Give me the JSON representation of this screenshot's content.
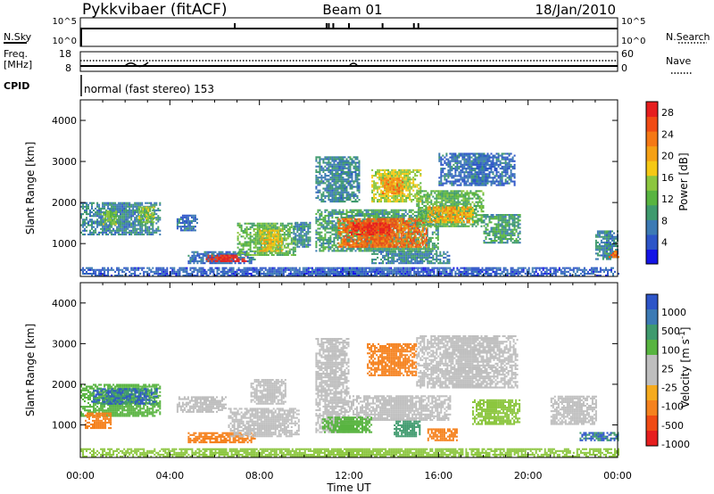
{
  "header": {
    "station": "Pykkvibaer (fitACF)",
    "beam": "Beam 01",
    "date": "18/Jan/2010"
  },
  "top_panels": {
    "nsky_label": "N.Sky",
    "nsky_ticks": [
      "10^5",
      "10^0"
    ],
    "nsearch_label": "N.Search",
    "nsearch_ticks": [
      "10^5",
      "10^0"
    ],
    "freq_label_1": "Freq.",
    "freq_label_2": "[MHz]",
    "freq_ticks": [
      "18",
      "8"
    ],
    "nave_label": "Nave",
    "nave_ticks": [
      "60",
      "0"
    ],
    "cpid_label": "CPID",
    "cpid_value": "normal (fast stereo) 153"
  },
  "colors": {
    "power_scale": [
      "#1414e6",
      "#2d55c8",
      "#3c7ab4",
      "#3f9a6e",
      "#58b440",
      "#8cc63f",
      "#f5c814",
      "#f5a014",
      "#f57814",
      "#f04b14",
      "#e61e1e"
    ],
    "velocity_scale": [
      "#e61e1e",
      "#f04b14",
      "#f5821e",
      "#f5aa1e",
      "#bebebe",
      "#bebebe",
      "#58b440",
      "#3f9a6e",
      "#3c7ab4",
      "#2d55c8"
    ]
  },
  "chart_data": [
    {
      "type": "heatmap",
      "name": "power",
      "xlabel": "",
      "ylabel": "Slant Range [km]",
      "x_unit": "hours UT",
      "xlim": [
        0,
        24
      ],
      "ylim": [
        200,
        4500
      ],
      "x_ticks": [
        "00:00",
        "04:00",
        "08:00",
        "12:00",
        "16:00",
        "20:00",
        "00:00"
      ],
      "y_ticks": [
        "1000",
        "2000",
        "3000",
        "4000"
      ],
      "colorbar_label": "Power [dB]",
      "colorbar_ticks": [
        "4",
        "8",
        "12",
        "16",
        "20",
        "24",
        "28"
      ],
      "clim": [
        0,
        30
      ],
      "regions": [
        {
          "t0": 0.0,
          "t1": 3.6,
          "r0": 1200,
          "r1": 2000,
          "value": 8
        },
        {
          "t0": 1.0,
          "t1": 1.6,
          "r0": 1450,
          "r1": 1800,
          "value": 14
        },
        {
          "t0": 2.6,
          "t1": 3.3,
          "r0": 1500,
          "r1": 1900,
          "value": 14
        },
        {
          "t0": 4.3,
          "t1": 5.2,
          "r0": 1300,
          "r1": 1700,
          "value": 6
        },
        {
          "t0": 4.8,
          "t1": 7.8,
          "r0": 500,
          "r1": 800,
          "value": 6
        },
        {
          "t0": 5.6,
          "t1": 7.4,
          "r0": 550,
          "r1": 720,
          "value": 28
        },
        {
          "t0": 7.0,
          "t1": 9.6,
          "r0": 700,
          "r1": 1500,
          "value": 12
        },
        {
          "t0": 8.0,
          "t1": 9.0,
          "r0": 800,
          "r1": 1300,
          "value": 18
        },
        {
          "t0": 9.5,
          "t1": 10.3,
          "r0": 900,
          "r1": 1500,
          "value": 8
        },
        {
          "t0": 10.5,
          "t1": 16.0,
          "r0": 800,
          "r1": 1800,
          "value": 10
        },
        {
          "t0": 11.5,
          "t1": 15.5,
          "r0": 900,
          "r1": 1600,
          "value": 24
        },
        {
          "t0": 12.0,
          "t1": 13.8,
          "r0": 1200,
          "r1": 1500,
          "value": 28
        },
        {
          "t0": 13.0,
          "t1": 15.2,
          "r0": 2000,
          "r1": 2800,
          "value": 16
        },
        {
          "t0": 13.4,
          "t1": 14.4,
          "r0": 2200,
          "r1": 2600,
          "value": 22
        },
        {
          "t0": 10.5,
          "t1": 12.5,
          "r0": 2000,
          "r1": 3100,
          "value": 8
        },
        {
          "t0": 15.0,
          "t1": 18.0,
          "r0": 1400,
          "r1": 2300,
          "value": 12
        },
        {
          "t0": 15.5,
          "t1": 17.5,
          "r0": 1500,
          "r1": 1900,
          "value": 20
        },
        {
          "t0": 16.0,
          "t1": 19.4,
          "r0": 2400,
          "r1": 3200,
          "value": 6
        },
        {
          "t0": 18.0,
          "t1": 19.6,
          "r0": 1000,
          "r1": 1700,
          "value": 10
        },
        {
          "t0": 13.0,
          "t1": 16.5,
          "r0": 500,
          "r1": 800,
          "value": 8
        },
        {
          "t0": 23.0,
          "t1": 24.0,
          "r0": 600,
          "r1": 1300,
          "value": 8
        },
        {
          "t0": 23.6,
          "t1": 24.0,
          "r0": 650,
          "r1": 800,
          "value": 24
        },
        {
          "t0": 0.0,
          "t1": 24.0,
          "r0": 200,
          "r1": 400,
          "value": 5
        }
      ]
    },
    {
      "type": "heatmap",
      "name": "velocity",
      "xlabel": "Time UT",
      "ylabel": "Slant Range [km]",
      "x_unit": "hours UT",
      "xlim": [
        0,
        24
      ],
      "ylim": [
        200,
        4500
      ],
      "x_ticks": [
        "00:00",
        "04:00",
        "08:00",
        "12:00",
        "16:00",
        "20:00",
        "00:00"
      ],
      "y_ticks": [
        "1000",
        "2000",
        "3000",
        "4000"
      ],
      "colorbar_label": "Velocity [m s^-1]",
      "colorbar_ticks": [
        "1000",
        "500",
        "100",
        "25",
        "-25",
        "-100",
        "-500",
        "-1000"
      ],
      "regions": [
        {
          "t0": 0.0,
          "t1": 3.6,
          "r0": 1200,
          "r1": 2000,
          "value": 200
        },
        {
          "t0": 0.5,
          "t1": 3.4,
          "r0": 1500,
          "r1": 1900,
          "value": 700
        },
        {
          "t0": 0.2,
          "t1": 1.4,
          "r0": 900,
          "r1": 1300,
          "value": -200
        },
        {
          "t0": 4.3,
          "t1": 6.5,
          "r0": 1300,
          "r1": 1700,
          "value": 0
        },
        {
          "t0": 4.8,
          "t1": 7.8,
          "r0": 550,
          "r1": 800,
          "value": -150
        },
        {
          "t0": 6.6,
          "t1": 9.8,
          "r0": 700,
          "r1": 1400,
          "value": 0
        },
        {
          "t0": 7.6,
          "t1": 9.2,
          "r0": 1500,
          "r1": 2100,
          "value": 0
        },
        {
          "t0": 10.5,
          "t1": 12.0,
          "r0": 800,
          "r1": 3100,
          "value": 0
        },
        {
          "t0": 12.0,
          "t1": 16.5,
          "r0": 1100,
          "r1": 1700,
          "value": 0
        },
        {
          "t0": 12.8,
          "t1": 15.0,
          "r0": 2200,
          "r1": 3000,
          "value": -200
        },
        {
          "t0": 14.0,
          "t1": 15.2,
          "r0": 700,
          "r1": 1100,
          "value": 500
        },
        {
          "t0": 10.8,
          "t1": 13.0,
          "r0": 800,
          "r1": 1200,
          "value": 150
        },
        {
          "t0": 15.0,
          "t1": 19.5,
          "r0": 1900,
          "r1": 3200,
          "value": 0
        },
        {
          "t0": 15.5,
          "t1": 16.8,
          "r0": 600,
          "r1": 900,
          "value": -150
        },
        {
          "t0": 17.5,
          "t1": 19.6,
          "r0": 1000,
          "r1": 1600,
          "value": 50
        },
        {
          "t0": 21.0,
          "t1": 23.0,
          "r0": 1000,
          "r1": 1700,
          "value": 0
        },
        {
          "t0": 22.3,
          "t1": 24.0,
          "r0": 600,
          "r1": 800,
          "value": 700
        },
        {
          "t0": 0.0,
          "t1": 24.0,
          "r0": 200,
          "r1": 400,
          "value": 60
        }
      ]
    }
  ]
}
